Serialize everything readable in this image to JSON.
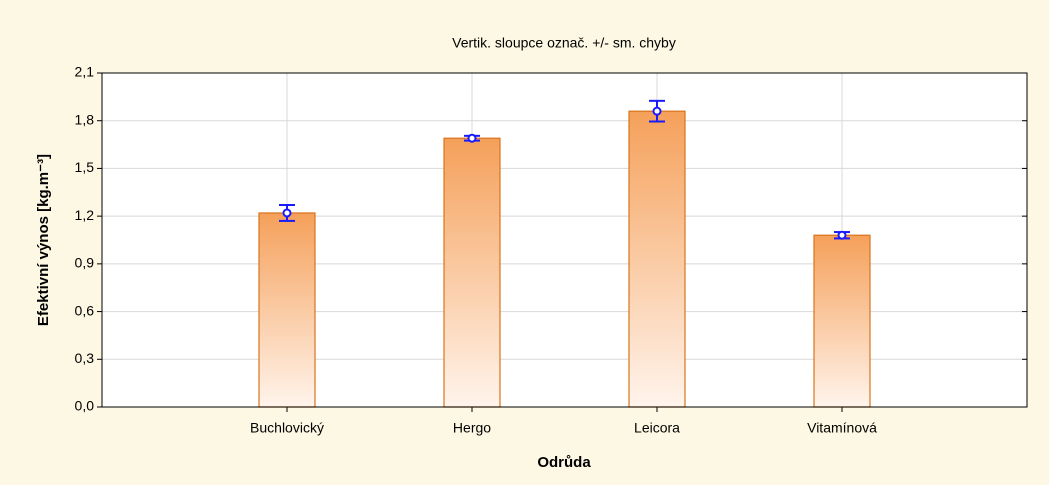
{
  "chart_data": {
    "type": "bar",
    "title": "Vertik. sloupce označ. +/- sm. chyby",
    "x_label": "Odrůda",
    "y_label": "Efektivní výnos [kg.m⁻³]",
    "categories": [
      "Buchlovický",
      "Hergo",
      "Leicora",
      "Vitamínová"
    ],
    "values": [
      1.22,
      1.69,
      1.86,
      1.08
    ],
    "errors": [
      0.05,
      0.015,
      0.065,
      0.02
    ],
    "color": "#f5a05a",
    "error_color": "#1a1aff",
    "ylim": [
      0,
      2.1
    ],
    "yticks": [
      {
        "value": 0,
        "label": "0,0"
      },
      {
        "value": 0.3,
        "label": "0,3"
      },
      {
        "value": 0.6,
        "label": "0,6"
      },
      {
        "value": 0.9,
        "label": "0,9"
      },
      {
        "value": 1.2,
        "label": "1,2"
      },
      {
        "value": 1.5,
        "label": "1,5"
      },
      {
        "value": 1.8,
        "label": "1,8"
      },
      {
        "value": 2.1,
        "label": "2,1"
      }
    ],
    "grid": true
  }
}
